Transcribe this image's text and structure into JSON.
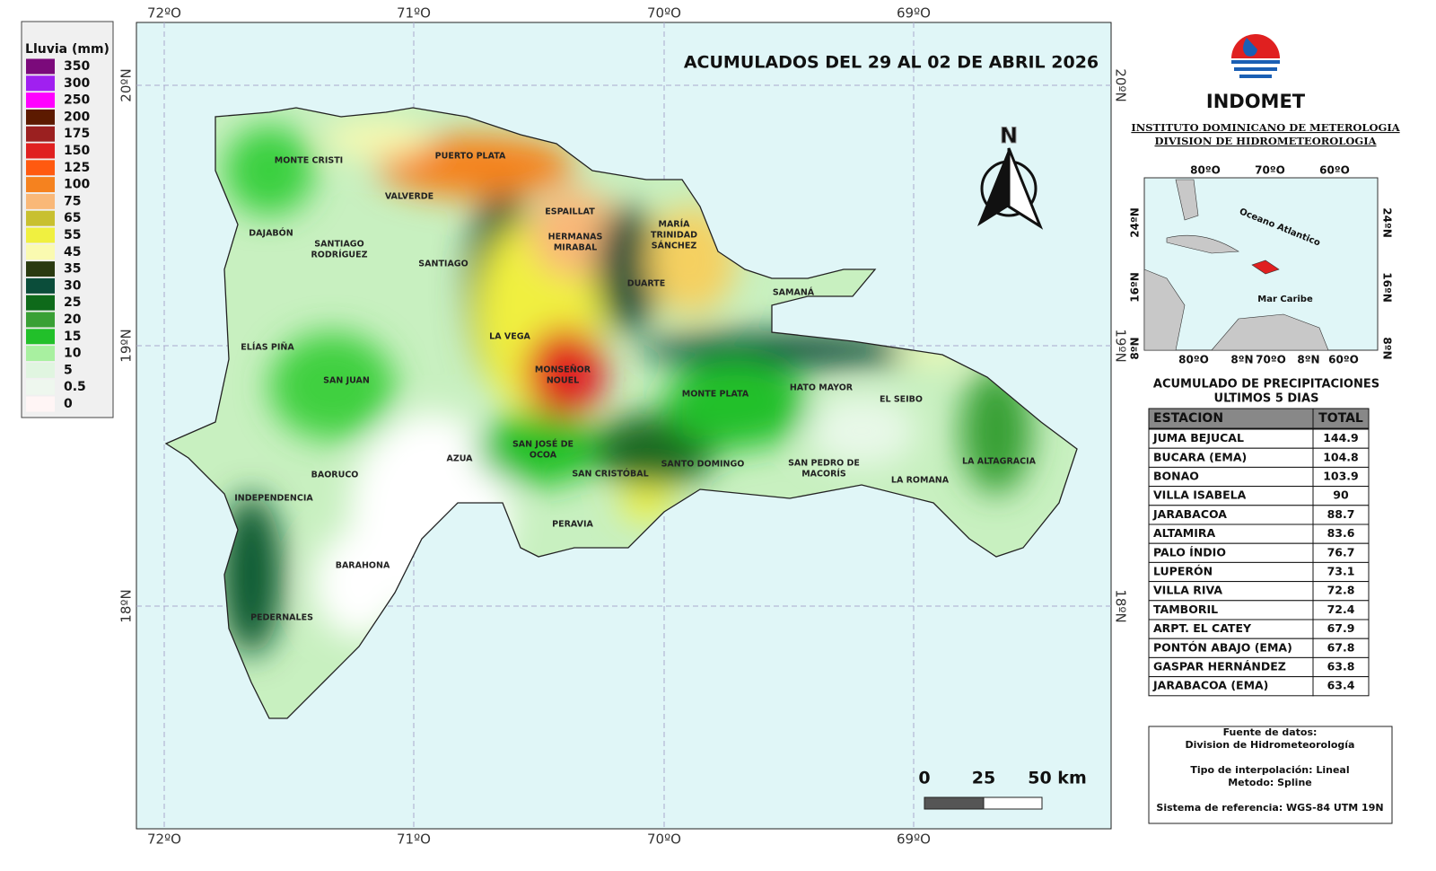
{
  "legend": {
    "title": "Lluvia (mm)",
    "entries": [
      {
        "label": 350,
        "color": "#7b0a7b"
      },
      {
        "label": 300,
        "color": "#a020f0"
      },
      {
        "label": 250,
        "color": "#ff00ff"
      },
      {
        "label": 200,
        "color": "#5c1a00"
      },
      {
        "label": 175,
        "color": "#9b2020"
      },
      {
        "label": 150,
        "color": "#e02020"
      },
      {
        "label": 125,
        "color": "#ff5a10"
      },
      {
        "label": 100,
        "color": "#f5821f"
      },
      {
        "label": 75,
        "color": "#f9b878"
      },
      {
        "label": 65,
        "color": "#c8c030"
      },
      {
        "label": 55,
        "color": "#f0f040"
      },
      {
        "label": 45,
        "color": "#fafab0"
      },
      {
        "label": 35,
        "color": "#2a3a10"
      },
      {
        "label": 30,
        "color": "#0b4d3a"
      },
      {
        "label": 25,
        "color": "#0e6a1a"
      },
      {
        "label": 20,
        "color": "#39a035"
      },
      {
        "label": 15,
        "color": "#22c02a"
      },
      {
        "label": 10,
        "color": "#a8f0a0"
      },
      {
        "label": 5,
        "color": "#e0f5e0"
      },
      {
        "label": 0.5,
        "color": "#eef7ee"
      },
      {
        "label": 0,
        "color": "#fff5f5"
      }
    ]
  },
  "map": {
    "title": "ACUMULADOS DEL 29 AL 02 DE ABRIL 2026",
    "lon_labels": [
      "72ºO",
      "71ºO",
      "70ºO",
      "69ºO"
    ],
    "lat_labels": [
      "20ºN",
      "19ºN",
      "18ºN"
    ],
    "north": "N",
    "scale_labels": [
      "0",
      "25",
      "50 km"
    ],
    "provinces": [
      {
        "lines": [
          "MONTE CRISTI"
        ]
      },
      {
        "lines": [
          "PUERTO PLATA"
        ]
      },
      {
        "lines": [
          "VALVERDE"
        ]
      },
      {
        "lines": [
          "ESPAILLAT"
        ]
      },
      {
        "lines": [
          "DAJABÓN"
        ]
      },
      {
        "lines": [
          "SANTIAGO",
          "RODRÍGUEZ"
        ]
      },
      {
        "lines": [
          "SANTIAGO"
        ]
      },
      {
        "lines": [
          "HERMANAS",
          "MIRABAL"
        ]
      },
      {
        "lines": [
          "MARÍA",
          "TRINIDAD",
          "SÁNCHEZ"
        ]
      },
      {
        "lines": [
          "DUARTE"
        ]
      },
      {
        "lines": [
          "SAMANÁ"
        ]
      },
      {
        "lines": [
          "LA VEGA"
        ]
      },
      {
        "lines": [
          "ELÍAS PIÑA"
        ]
      },
      {
        "lines": [
          "MONSEÑOR",
          "NOUEL"
        ]
      },
      {
        "lines": [
          "SAN JUAN"
        ]
      },
      {
        "lines": [
          "MONTE PLATA"
        ]
      },
      {
        "lines": [
          "HATO MAYOR"
        ]
      },
      {
        "lines": [
          "EL SEIBO"
        ]
      },
      {
        "lines": [
          "SAN JOSÉ DE",
          "OCOA"
        ]
      },
      {
        "lines": [
          "AZUA"
        ]
      },
      {
        "lines": [
          "SANTO DOMINGO"
        ]
      },
      {
        "lines": [
          "SAN PEDRO DE",
          "MACORÍS"
        ]
      },
      {
        "lines": [
          "LA ALTAGRACIA"
        ]
      },
      {
        "lines": [
          "BAORUCO"
        ]
      },
      {
        "lines": [
          "SAN CRISTÓBAL"
        ]
      },
      {
        "lines": [
          "LA ROMANA"
        ]
      },
      {
        "lines": [
          "INDEPENDENCIA"
        ]
      },
      {
        "lines": [
          "PERAVIA"
        ]
      },
      {
        "lines": [
          "BARAHONA"
        ]
      },
      {
        "lines": [
          "PEDERNALES"
        ]
      }
    ]
  },
  "header": {
    "brand": "INDOMET",
    "lines": [
      "INSTITUTO DOMINICANO DE METEROLOGIA",
      "DIVISION DE HIDROMETEOROLOGIA"
    ]
  },
  "inset": {
    "top_labels": [
      "80ºO",
      "70ºO",
      "60ºO"
    ],
    "bottom_labels": [
      "80ºO",
      "8ºN",
      "70ºO",
      "8ºN",
      "60ºO"
    ],
    "left_labels": [
      "24ºN",
      "16ºN",
      "8ºN"
    ],
    "right_labels": [
      "24ºN",
      "16ºN",
      "8ºN"
    ],
    "ocean": "Oceano Atlantico",
    "sea": "Mar Caribe"
  },
  "table": {
    "title": [
      "ACUMULADO DE PRECIPITACIONES",
      "ULTIMOS 5 DIAS"
    ],
    "columns": [
      "ESTACION",
      "TOTAL"
    ],
    "rows": [
      [
        "JUMA BEJUCAL",
        144.9
      ],
      [
        "BUCARA (EMA)",
        104.8
      ],
      [
        "BONAO",
        103.9
      ],
      [
        "VILLA ISABELA",
        90
      ],
      [
        "JARABACOA",
        88.7
      ],
      [
        "ALTAMIRA",
        83.6
      ],
      [
        "PALO ÍNDIO",
        76.7
      ],
      [
        "LUPERÓN",
        73.1
      ],
      [
        "VILLA RIVA",
        72.8
      ],
      [
        "TAMBORIL",
        72.4
      ],
      [
        "ARPT. EL CATEY",
        67.9
      ],
      [
        "PONTÓN ABAJO (EMA)",
        67.8
      ],
      [
        "GASPAR HERNÁNDEZ",
        63.8
      ],
      [
        "JARABACOA (EMA)",
        63.4
      ]
    ]
  },
  "source": {
    "lines": [
      "Fuente de datos:",
      "Division de Hidrometeorología",
      "Tipo de interpolación: Lineal",
      "Metodo: Spline",
      "Sistema de referencia: WGS-84 UTM 19N"
    ]
  }
}
